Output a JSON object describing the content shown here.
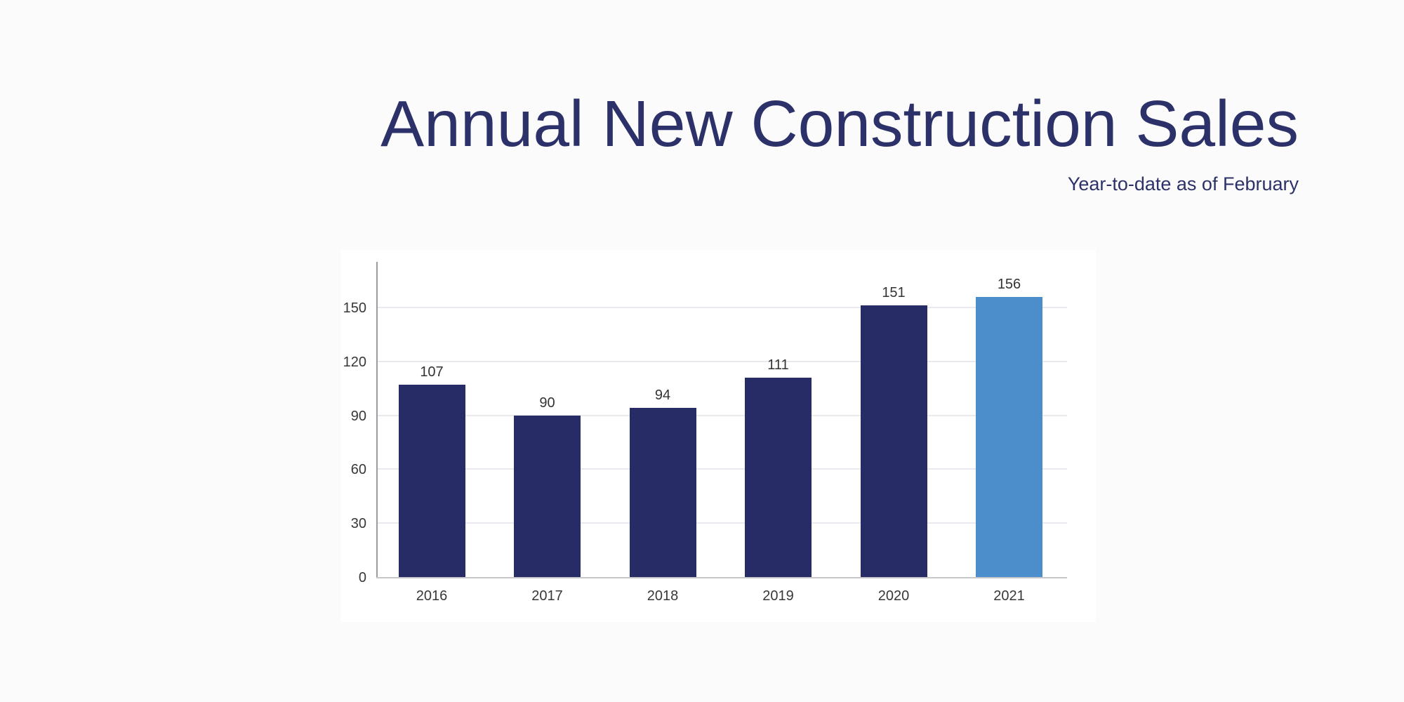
{
  "header": {
    "title": "Annual New Construction Sales",
    "subtitle": "Year-to-date as of February"
  },
  "chart_data": {
    "type": "bar",
    "title": "Annual New Construction Sales",
    "subtitle": "Year-to-date as of February",
    "categories": [
      "2016",
      "2017",
      "2018",
      "2019",
      "2020",
      "2021"
    ],
    "values": [
      107,
      90,
      94,
      111,
      151,
      156
    ],
    "data_labels": [
      "107",
      "90",
      "94",
      "111",
      "151",
      "156"
    ],
    "xlabel": "",
    "ylabel": "",
    "ylim": [
      0,
      175
    ],
    "yticks": [
      0,
      30,
      60,
      90,
      120,
      150
    ],
    "grid": "horizontal-only",
    "legend": "none",
    "bar_colors": [
      "#272b66",
      "#272b66",
      "#272b66",
      "#272b66",
      "#272b66",
      "#4b8ecb"
    ],
    "colors": {
      "navy_bar": "#272b66",
      "highlight_bar": "#4b8ecb",
      "title_text": "#2c3269",
      "tick_label_text": "#383838",
      "gridline": "#e9e9f0",
      "y_axis_line": "#9b9ba1",
      "x_axis_line": "#c7c7c9",
      "panel_background": "#ffffff",
      "page_background": "#fbfbfc"
    }
  }
}
